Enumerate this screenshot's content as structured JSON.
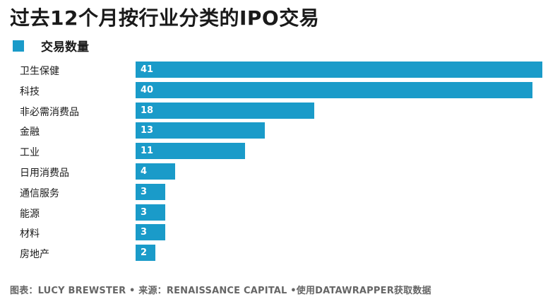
{
  "title": "过去12个月按行业分类的IPO交易",
  "footer": "图表：LUCY BREWSTER • 来源：RENAISSANCE CAPITAL •使用DATAWRAPPER获取数据",
  "colors": {
    "bar": "#1a9bc9",
    "text": "#1a1a1a",
    "footer": "#666666"
  },
  "chart_data": {
    "type": "bar",
    "orientation": "horizontal",
    "categories": [
      "卫生保健",
      "科技",
      "非必需消费品",
      "金融",
      "工业",
      "日用消费品",
      "通信服务",
      "能源",
      "材料",
      "房地产"
    ],
    "series": [
      {
        "name": "交易数量",
        "values": [
          41,
          40,
          18,
          13,
          11,
          4,
          3,
          3,
          3,
          2
        ]
      }
    ],
    "xlim": [
      0,
      41
    ],
    "grid": false,
    "legend": "top-left",
    "data_labels": "inside-left"
  }
}
